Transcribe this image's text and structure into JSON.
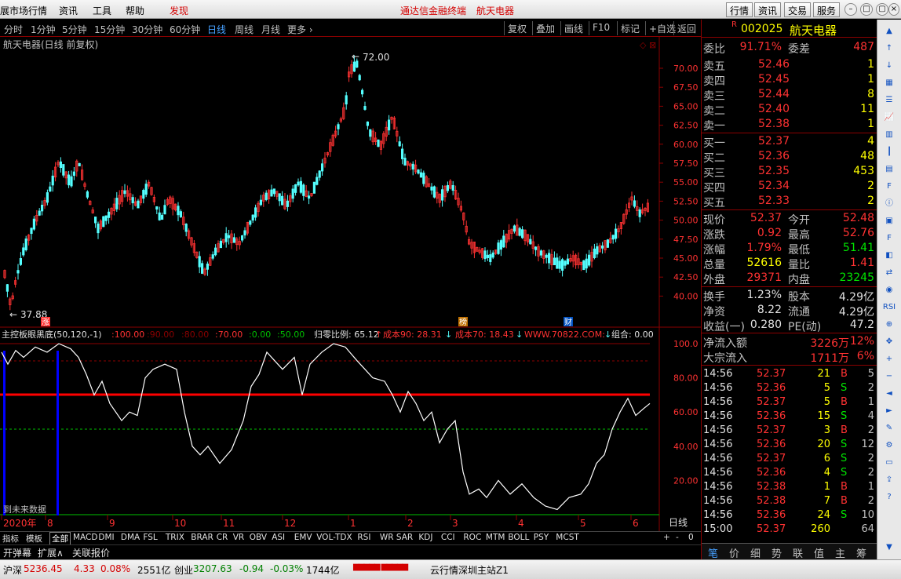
{
  "menu": {
    "items": [
      "展市场行情",
      "资讯",
      "工具",
      "帮助"
    ],
    "discover": "发现",
    "app_title": "通达信金融终端",
    "stock_title": "航天电器",
    "buttons": [
      "行情",
      "资讯",
      "交易",
      "服务"
    ]
  },
  "periods": {
    "items": [
      "分时",
      "1分钟",
      "5分钟",
      "15分钟",
      "30分钟",
      "60分钟",
      "日线",
      "周线",
      "月线",
      "更多 ›"
    ],
    "active_index": 6,
    "tools": [
      "复权",
      "叠加",
      "画线",
      "F10",
      "标记",
      "+自选",
      "返回"
    ]
  },
  "chart": {
    "title": "航天电器(日线 前复权)",
    "high_label": "72.00",
    "low_label": "37.88",
    "y_ticks": [
      "70.00",
      "67.50",
      "65.00",
      "62.50",
      "60.00",
      "57.50",
      "55.00",
      "52.50",
      "50.00",
      "47.50",
      "45.00",
      "42.50",
      "40.00"
    ],
    "markers": [
      "涨",
      "榜",
      "财"
    ]
  },
  "indicator": {
    "name": "主控板眼黑底(50,120,-1)",
    "params": [
      ":100.00",
      ":90.00",
      ":80.00",
      ":70.00",
      ":0.00",
      ":50.00"
    ],
    "ratio": "归零比例: 65.12",
    "cost90": "成本90: 28.31",
    "cost70": "成本70: 18.43",
    "watermark": "WWW.70822.COM:",
    "combo": "组合: 0.00",
    "y_ticks": [
      "100.0",
      "80.00",
      "60.00",
      "40.00",
      "20.00"
    ],
    "note": "到未来数据"
  },
  "timeline": {
    "labels": [
      "2020年",
      "8",
      "9",
      "10",
      "11",
      "12",
      "1",
      "2",
      "3",
      "4",
      "5",
      "6"
    ],
    "period": "日线"
  },
  "bottom_tabs": {
    "items": [
      "指标",
      "模板",
      "全部",
      "MACD",
      "DMI",
      "DMA",
      "FSL",
      "TRIX",
      "BRAR",
      "CR",
      "VR",
      "OBV",
      "ASI",
      "EMV",
      "VOL-TDX",
      "RSI",
      "WR",
      "SAR",
      "KDJ",
      "CCI",
      "ROC",
      "MTM",
      "BOLL",
      "PSY",
      "MCST"
    ],
    "active_index": 2,
    "controls": [
      "+",
      "-",
      "0"
    ]
  },
  "sub_tabs": {
    "items": [
      "开弹幕",
      "扩展∧",
      "关联报价"
    ]
  },
  "quote": {
    "code": "002025",
    "name": "航天电器",
    "r_badge": "R",
    "weibi_label": "委比",
    "weibi": "91.71%",
    "weicha_label": "委差",
    "weicha": "487",
    "sells": [
      {
        "label": "卖五",
        "price": "52.46",
        "vol": "1"
      },
      {
        "label": "卖四",
        "price": "52.45",
        "vol": "1"
      },
      {
        "label": "卖三",
        "price": "52.44",
        "vol": "8"
      },
      {
        "label": "卖二",
        "price": "52.40",
        "vol": "11"
      },
      {
        "label": "卖一",
        "price": "52.38",
        "vol": "1"
      }
    ],
    "buys": [
      {
        "label": "买一",
        "price": "52.37",
        "vol": "4"
      },
      {
        "label": "买二",
        "price": "52.36",
        "vol": "48"
      },
      {
        "label": "买三",
        "price": "52.35",
        "vol": "453"
      },
      {
        "label": "买四",
        "price": "52.34",
        "vol": "2"
      },
      {
        "label": "买五",
        "price": "52.33",
        "vol": "2"
      }
    ],
    "stats": [
      {
        "l1": "现价",
        "v1": "52.37",
        "c1": "r",
        "l2": "今开",
        "v2": "52.48",
        "c2": "r"
      },
      {
        "l1": "涨跌",
        "v1": "0.92",
        "c1": "r",
        "l2": "最高",
        "v2": "52.76",
        "c2": "r"
      },
      {
        "l1": "涨幅",
        "v1": "1.79%",
        "c1": "r",
        "l2": "最低",
        "v2": "51.41",
        "c2": "g"
      },
      {
        "l1": "总量",
        "v1": "52616",
        "c1": "y",
        "l2": "量比",
        "v2": "1.41",
        "c2": "r"
      },
      {
        "l1": "外盘",
        "v1": "29371",
        "c1": "r",
        "l2": "内盘",
        "v2": "23245",
        "c2": "g"
      }
    ],
    "stats2": [
      {
        "l1": "换手",
        "v1": "1.23%",
        "l2": "股本",
        "v2": "4.29亿"
      },
      {
        "l1": "净资",
        "v1": "8.22",
        "l2": "流通",
        "v2": "4.29亿"
      },
      {
        "l1": "收益(一)",
        "v1": "0.280",
        "l2": "PE(动)",
        "v2": "47.2"
      }
    ],
    "flows": [
      {
        "label": "净流入额",
        "val": "3226万",
        "pct": "12%"
      },
      {
        "label": "大宗流入",
        "val": "1711万",
        "pct": "6%"
      }
    ],
    "ticks": [
      {
        "t": "14:56",
        "p": "52.37",
        "v": "21",
        "d": "B",
        "n": "5"
      },
      {
        "t": "14:56",
        "p": "52.36",
        "v": "5",
        "d": "S",
        "n": "2"
      },
      {
        "t": "14:56",
        "p": "52.37",
        "v": "5",
        "d": "B",
        "n": "1"
      },
      {
        "t": "14:56",
        "p": "52.36",
        "v": "15",
        "d": "S",
        "n": "4"
      },
      {
        "t": "14:56",
        "p": "52.37",
        "v": "3",
        "d": "B",
        "n": "2"
      },
      {
        "t": "14:56",
        "p": "52.36",
        "v": "20",
        "d": "S",
        "n": "12"
      },
      {
        "t": "14:56",
        "p": "52.37",
        "v": "6",
        "d": "S",
        "n": "2"
      },
      {
        "t": "14:56",
        "p": "52.36",
        "v": "4",
        "d": "S",
        "n": "2"
      },
      {
        "t": "14:56",
        "p": "52.38",
        "v": "1",
        "d": "B",
        "n": "1"
      },
      {
        "t": "14:56",
        "p": "52.38",
        "v": "7",
        "d": "B",
        "n": "2"
      },
      {
        "t": "14:56",
        "p": "52.36",
        "v": "24",
        "d": "S",
        "n": "10"
      },
      {
        "t": "15:00",
        "p": "52.37",
        "v": "260",
        "d": "",
        "n": "64"
      }
    ],
    "tabs": [
      "笔",
      "价",
      "细",
      "势",
      "联",
      "值",
      "主",
      "筹"
    ]
  },
  "status": {
    "sh_label": "沪深",
    "sh_val": "5236.45",
    "sh_chg": "4.33",
    "sh_pct": "0.08%",
    "sh_amt": "2551亿",
    "cy_label": "创业",
    "cy_val": "3207.63",
    "cy_chg": "-0.94",
    "cy_pct": "-0.03%",
    "cy_amt": "1744亿",
    "server": "云行情深圳主站Z1"
  },
  "colors": {
    "up": "#ff3232",
    "down": "#54ffff",
    "ind_line": "#ffffff",
    "redline": "#ff0000",
    "greenline": "#00c000",
    "blue": "#0000ff"
  }
}
